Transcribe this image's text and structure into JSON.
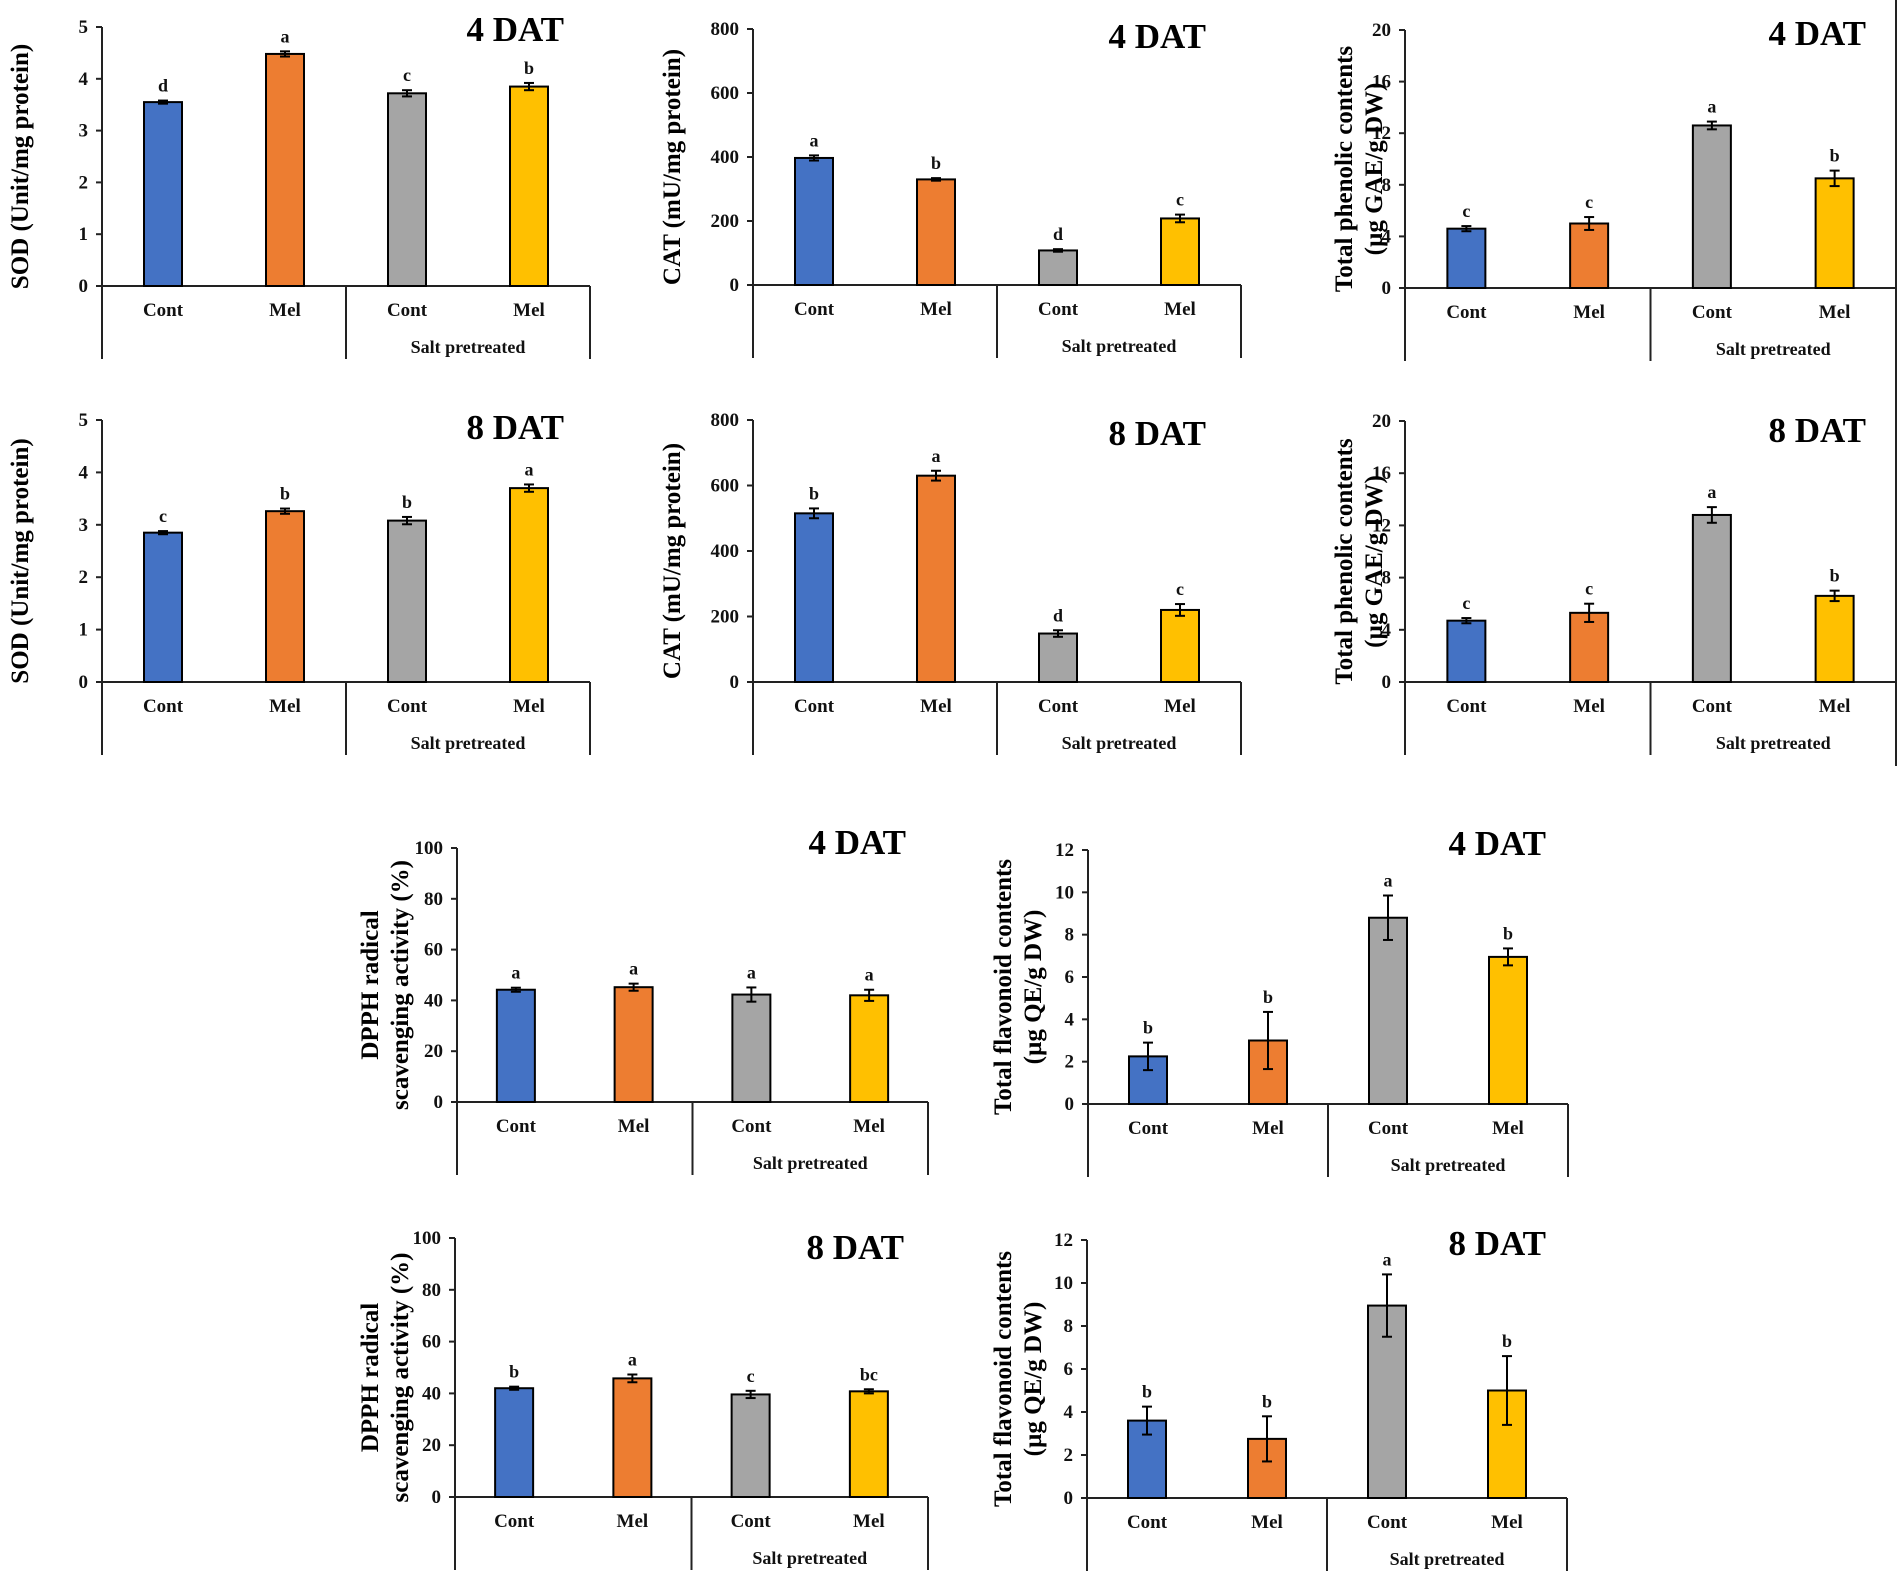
{
  "chart_data": [
    {
      "id": "sod-4dat",
      "type": "bar",
      "title": "4 DAT",
      "ylabel": [
        "SOD (Unit/mg protein)"
      ],
      "ylim": [
        0,
        5
      ],
      "yticks": [
        0,
        1,
        2,
        3,
        4,
        5
      ],
      "categories": [
        "Cont",
        "Mel",
        "Cont",
        "Mel"
      ],
      "group_label": "Salt pretreated",
      "values": [
        3.55,
        4.48,
        3.72,
        3.85
      ],
      "errors": [
        0.03,
        0.05,
        0.06,
        0.07
      ],
      "letters": [
        "d",
        "a",
        "c",
        "b"
      ],
      "colors": [
        "#4472C4",
        "#ED7D31",
        "#A5A5A5",
        "#FFC000"
      ]
    },
    {
      "id": "cat-4dat",
      "type": "bar",
      "title": "4 DAT",
      "ylabel": [
        "CAT (mU/mg protein)"
      ],
      "ylim": [
        0,
        800
      ],
      "yticks": [
        0,
        200,
        400,
        600,
        800
      ],
      "categories": [
        "Cont",
        "Mel",
        "Cont",
        "Mel"
      ],
      "group_label": "Salt pretreated",
      "values": [
        397,
        330,
        108,
        208
      ],
      "errors": [
        8,
        4,
        4,
        12
      ],
      "letters": [
        "a",
        "b",
        "d",
        "c"
      ],
      "colors": [
        "#4472C4",
        "#ED7D31",
        "#A5A5A5",
        "#FFC000"
      ]
    },
    {
      "id": "tpc-4dat",
      "type": "bar",
      "title": "4 DAT",
      "ylabel": [
        "Total phenolic contents",
        "(µg GAE/g DW)"
      ],
      "ylim": [
        0,
        20
      ],
      "yticks": [
        0,
        4,
        8,
        12,
        16,
        20
      ],
      "categories": [
        "Cont",
        "Mel",
        "Cont",
        "Mel"
      ],
      "group_label": "Salt pretreated",
      "values": [
        4.6,
        5.0,
        12.6,
        8.5
      ],
      "errors": [
        0.2,
        0.5,
        0.3,
        0.6
      ],
      "letters": [
        "c",
        "c",
        "a",
        "b"
      ],
      "colors": [
        "#4472C4",
        "#ED7D31",
        "#A5A5A5",
        "#FFC000"
      ]
    },
    {
      "id": "sod-8dat",
      "type": "bar",
      "title": "8 DAT",
      "ylabel": [
        "SOD (Unit/mg protein)"
      ],
      "ylim": [
        0,
        5
      ],
      "yticks": [
        0,
        1,
        2,
        3,
        4,
        5
      ],
      "categories": [
        "Cont",
        "Mel",
        "Cont",
        "Mel"
      ],
      "group_label": "Salt pretreated",
      "values": [
        2.85,
        3.26,
        3.08,
        3.7
      ],
      "errors": [
        0.03,
        0.05,
        0.07,
        0.07
      ],
      "letters": [
        "c",
        "b",
        "b",
        "a"
      ],
      "colors": [
        "#4472C4",
        "#ED7D31",
        "#A5A5A5",
        "#FFC000"
      ]
    },
    {
      "id": "cat-8dat",
      "type": "bar",
      "title": "8 DAT",
      "ylabel": [
        "CAT (mU/mg protein)"
      ],
      "ylim": [
        0,
        800
      ],
      "yticks": [
        0,
        200,
        400,
        600,
        800
      ],
      "categories": [
        "Cont",
        "Mel",
        "Cont",
        "Mel"
      ],
      "group_label": "Salt pretreated",
      "values": [
        515,
        630,
        148,
        220
      ],
      "errors": [
        15,
        15,
        10,
        18
      ],
      "letters": [
        "b",
        "a",
        "d",
        "c"
      ],
      "colors": [
        "#4472C4",
        "#ED7D31",
        "#A5A5A5",
        "#FFC000"
      ]
    },
    {
      "id": "tpc-8dat",
      "type": "bar",
      "title": "8 DAT",
      "ylabel": [
        "Total phenolic contents",
        "(µg GAE/g DW)"
      ],
      "ylim": [
        0,
        20
      ],
      "yticks": [
        0,
        4,
        8,
        12,
        16,
        20
      ],
      "categories": [
        "Cont",
        "Mel",
        "Cont",
        "Mel"
      ],
      "group_label": "Salt pretreated",
      "values": [
        4.7,
        5.3,
        12.8,
        6.6
      ],
      "errors": [
        0.2,
        0.7,
        0.6,
        0.4
      ],
      "letters": [
        "c",
        "c",
        "a",
        "b"
      ],
      "colors": [
        "#4472C4",
        "#ED7D31",
        "#A5A5A5",
        "#FFC000"
      ]
    },
    {
      "id": "dpph-4dat",
      "type": "bar",
      "title": "4 DAT",
      "ylabel": [
        "DPPH radical",
        "scavenging activity (%)"
      ],
      "ylim": [
        0,
        100
      ],
      "yticks": [
        0,
        20,
        40,
        60,
        80,
        100
      ],
      "categories": [
        "Cont",
        "Mel",
        "Cont",
        "Mel"
      ],
      "group_label": "Salt pretreated",
      "values": [
        44.2,
        45.2,
        42.3,
        42.0
      ],
      "errors": [
        0.8,
        1.4,
        2.8,
        2.2
      ],
      "letters": [
        "a",
        "a",
        "a",
        "a"
      ],
      "colors": [
        "#4472C4",
        "#ED7D31",
        "#A5A5A5",
        "#FFC000"
      ]
    },
    {
      "id": "tfc-4dat",
      "type": "bar",
      "title": "4 DAT",
      "ylabel": [
        "Total flavonoid contents",
        "(µg QE/g DW)"
      ],
      "ylim": [
        0,
        12
      ],
      "yticks": [
        0,
        2,
        4,
        6,
        8,
        10,
        12
      ],
      "categories": [
        "Cont",
        "Mel",
        "Cont",
        "Mel"
      ],
      "group_label": "Salt pretreated",
      "values": [
        2.25,
        3.0,
        8.8,
        6.95
      ],
      "errors": [
        0.65,
        1.35,
        1.05,
        0.4
      ],
      "letters": [
        "b",
        "b",
        "a",
        "b"
      ],
      "colors": [
        "#4472C4",
        "#ED7D31",
        "#A5A5A5",
        "#FFC000"
      ]
    },
    {
      "id": "dpph-8dat",
      "type": "bar",
      "title": "8 DAT",
      "ylabel": [
        "DPPH radical",
        "scavenging activity (%)"
      ],
      "ylim": [
        0,
        100
      ],
      "yticks": [
        0,
        20,
        40,
        60,
        80,
        100
      ],
      "categories": [
        "Cont",
        "Mel",
        "Cont",
        "Mel"
      ],
      "group_label": "Salt pretreated",
      "values": [
        42.0,
        45.8,
        39.6,
        40.8
      ],
      "errors": [
        0.6,
        1.5,
        1.4,
        0.8
      ],
      "letters": [
        "b",
        "a",
        "c",
        "bc"
      ],
      "colors": [
        "#4472C4",
        "#ED7D31",
        "#A5A5A5",
        "#FFC000"
      ]
    },
    {
      "id": "tfc-8dat",
      "type": "bar",
      "title": "8 DAT",
      "ylabel": [
        "Total flavonoid contents",
        "(µg QE/g DW)"
      ],
      "ylim": [
        0,
        12
      ],
      "yticks": [
        0,
        2,
        4,
        6,
        8,
        10,
        12
      ],
      "categories": [
        "Cont",
        "Mel",
        "Cont",
        "Mel"
      ],
      "group_label": "Salt pretreated",
      "values": [
        3.6,
        2.75,
        8.95,
        5.0
      ],
      "errors": [
        0.65,
        1.05,
        1.45,
        1.6
      ],
      "letters": [
        "b",
        "b",
        "a",
        "b"
      ],
      "colors": [
        "#4472C4",
        "#ED7D31",
        "#A5A5A5",
        "#FFC000"
      ]
    }
  ]
}
